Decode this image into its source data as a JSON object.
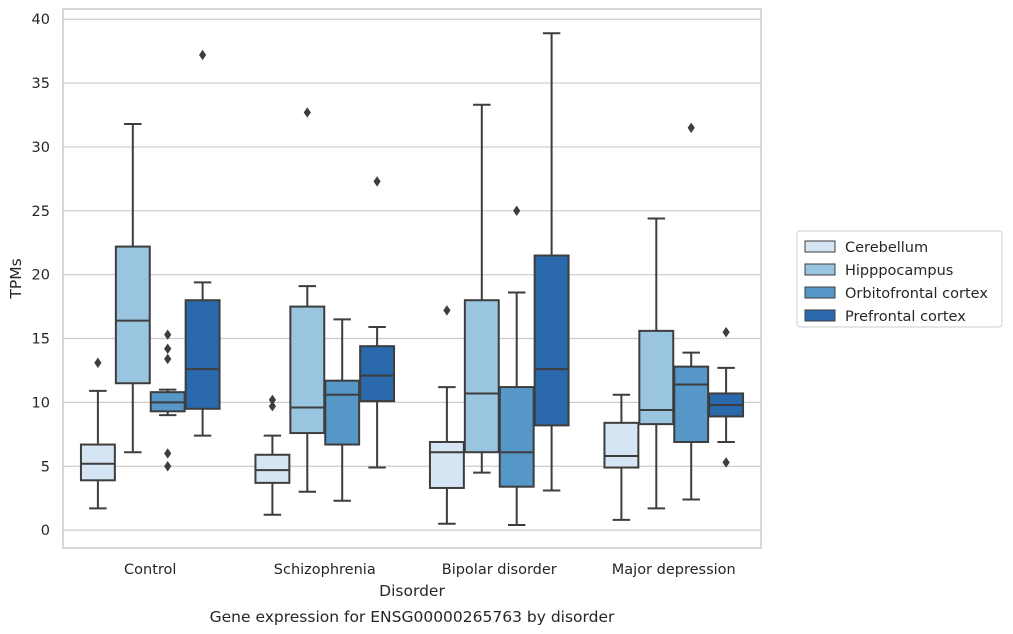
{
  "chart_data": {
    "type": "box",
    "caption": "Gene expression for ENSG00000265763 by disorder",
    "xlabel": "Disorder",
    "ylabel": "TPMs",
    "ylim": [
      -1.4,
      40.8
    ],
    "yticks": [
      0,
      5,
      10,
      15,
      20,
      25,
      30,
      35,
      40
    ],
    "grid": true,
    "legend_position": "right",
    "categories": [
      "Control",
      "Schizophrenia",
      "Bipolar disorder",
      "Major depression"
    ],
    "series": [
      {
        "name": "Cerebellum",
        "color": "#d5e5f3",
        "boxes": [
          {
            "whislo": 1.7,
            "q1": 3.9,
            "med": 5.2,
            "q3": 6.7,
            "whishi": 10.9,
            "fliers": [
              13.1
            ]
          },
          {
            "whislo": 1.2,
            "q1": 3.7,
            "med": 4.7,
            "q3": 5.9,
            "whishi": 7.4,
            "fliers": [
              9.7,
              10.2
            ]
          },
          {
            "whislo": 0.5,
            "q1": 3.3,
            "med": 6.1,
            "q3": 6.9,
            "whishi": 11.2,
            "fliers": [
              17.2
            ]
          },
          {
            "whislo": 0.8,
            "q1": 4.9,
            "med": 5.8,
            "q3": 8.4,
            "whishi": 10.6,
            "fliers": []
          }
        ]
      },
      {
        "name": "Hipppocampus",
        "color": "#9ac5e0",
        "boxes": [
          {
            "whislo": 6.1,
            "q1": 11.5,
            "med": 16.4,
            "q3": 22.2,
            "whishi": 31.8,
            "fliers": []
          },
          {
            "whislo": 3.0,
            "q1": 7.6,
            "med": 9.6,
            "q3": 17.5,
            "whishi": 19.1,
            "fliers": [
              32.7
            ]
          },
          {
            "whislo": 4.5,
            "q1": 6.1,
            "med": 10.7,
            "q3": 18.0,
            "whishi": 33.3,
            "fliers": []
          },
          {
            "whislo": 1.7,
            "q1": 8.3,
            "med": 9.4,
            "q3": 15.6,
            "whishi": 24.4,
            "fliers": []
          }
        ]
      },
      {
        "name": "Orbitofrontal cortex",
        "color": "#5597c7",
        "boxes": [
          {
            "whislo": 9.0,
            "q1": 9.3,
            "med": 10.0,
            "q3": 10.8,
            "whishi": 11.0,
            "fliers": [
              15.3,
              14.2,
              13.4,
              6.0,
              5.0
            ]
          },
          {
            "whislo": 2.3,
            "q1": 6.7,
            "med": 10.6,
            "q3": 11.7,
            "whishi": 16.5,
            "fliers": []
          },
          {
            "whislo": 0.4,
            "q1": 3.4,
            "med": 6.1,
            "q3": 11.2,
            "whishi": 18.6,
            "fliers": [
              25.0
            ]
          },
          {
            "whislo": 2.4,
            "q1": 6.9,
            "med": 11.4,
            "q3": 12.8,
            "whishi": 13.9,
            "fliers": [
              31.5
            ]
          }
        ]
      },
      {
        "name": "Prefrontal cortex",
        "color": "#2a69ab",
        "boxes": [
          {
            "whislo": 7.4,
            "q1": 9.5,
            "med": 12.6,
            "q3": 18.0,
            "whishi": 19.4,
            "fliers": [
              37.2
            ]
          },
          {
            "whislo": 4.9,
            "q1": 10.1,
            "med": 12.1,
            "q3": 14.4,
            "whishi": 15.9,
            "fliers": [
              27.3
            ]
          },
          {
            "whislo": 3.1,
            "q1": 8.2,
            "med": 12.6,
            "q3": 21.5,
            "whishi": 38.9,
            "fliers": []
          },
          {
            "whislo": 6.9,
            "q1": 8.9,
            "med": 9.8,
            "q3": 10.7,
            "whishi": 12.7,
            "fliers": [
              15.5,
              5.3
            ]
          }
        ]
      }
    ]
  }
}
